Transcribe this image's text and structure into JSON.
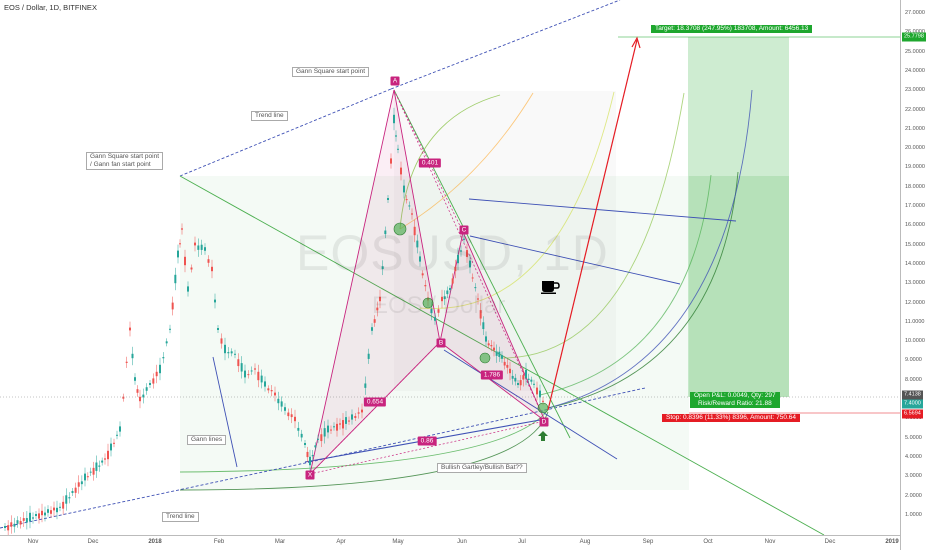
{
  "header": {
    "symbol_title": "EOS / Dollar, 1D, BITFINEX",
    "watermark_symbol": "EOSUSD, 1D",
    "watermark_desc": "EOS / Dollar"
  },
  "price_axis": {
    "ticks": [
      "27.0000",
      "26.0000",
      "25.0000",
      "24.0000",
      "23.0000",
      "22.0000",
      "21.0000",
      "20.0000",
      "19.0000",
      "18.0000",
      "17.0000",
      "16.0000",
      "15.0000",
      "14.0000",
      "13.0000",
      "12.0000",
      "11.0000",
      "10.0000",
      "9.0000",
      "8.0000",
      "7.0000",
      "6.0000",
      "5.0000",
      "4.0000",
      "3.0000",
      "2.0000",
      "1.0000"
    ],
    "tags": {
      "target": "25.7798",
      "current1": "7.4138",
      "current2": "7.4000",
      "stop": "6.5694"
    }
  },
  "time_axis": {
    "ticks": [
      "Nov",
      "Dec",
      "2018",
      "Feb",
      "Mar",
      "Apr",
      "May",
      "Jun",
      "Jul",
      "Aug",
      "Sep",
      "Oct",
      "Nov",
      "Dec",
      "2019"
    ]
  },
  "annotations": {
    "gann_square_start_top": "Gann Square start point",
    "trend_line_top": "Trend line",
    "gann_square_fan_line1": "Gann Square start point",
    "gann_square_fan_line2": "/ Gann fan start point",
    "gann_lines": "Gann lines",
    "bullish_pattern": "Bullish Gartley/Bullish Bat??",
    "trend_line_bottom": "Trend line"
  },
  "pattern_points": {
    "A": "A",
    "B": "B",
    "C": "C",
    "D": "D",
    "X": "X"
  },
  "ratios": {
    "r_0401": "0.401",
    "r_0654": "0.654",
    "r_1786": "1.786",
    "r_086": "0.86"
  },
  "position": {
    "target_text": "Target: 18.3708 (247.95%) 183708, Amount: 6456.13",
    "pl_line1": "Open P&L: 0.0049, Qty: 297",
    "pl_line2": "Risk/Reward Ratio: 21.88",
    "stop_text": "Stop: 0.8396 (11.33%) 8396, Amount: 750.64"
  },
  "colors": {
    "up_candle": "#26a69a",
    "down_candle": "#ef5350",
    "pattern_pink": "#c8247e",
    "target_green": "#1ea72e",
    "stop_red": "#e51c24",
    "trend_blue": "#3f51b5"
  },
  "icons": {
    "cup": "coffee-cup-icon",
    "arrow": "arrow-up-icon"
  }
}
